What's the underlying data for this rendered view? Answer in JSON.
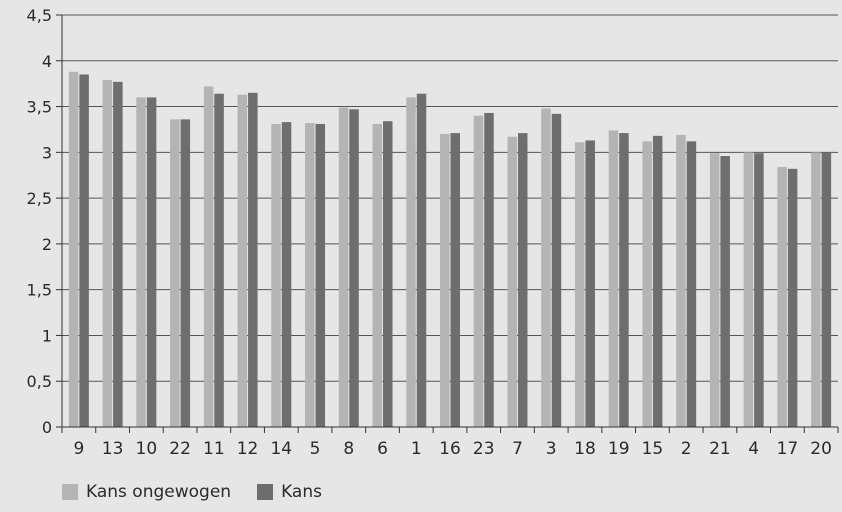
{
  "chart_data": {
    "type": "bar",
    "title": "",
    "xlabel": "",
    "ylabel": "",
    "categories": [
      "9",
      "13",
      "10",
      "22",
      "11",
      "12",
      "14",
      "5",
      "8",
      "6",
      "1",
      "16",
      "23",
      "7",
      "3",
      "18",
      "19",
      "15",
      "2",
      "21",
      "4",
      "17",
      "20"
    ],
    "series": [
      {
        "name": "Kans ongewogen",
        "color": "#b4b4b4",
        "values": [
          3.88,
          3.79,
          3.6,
          3.36,
          3.72,
          3.63,
          3.31,
          3.32,
          3.49,
          3.31,
          3.6,
          3.2,
          3.4,
          3.17,
          3.48,
          3.11,
          3.24,
          3.12,
          3.19,
          2.99,
          3.0,
          2.84,
          3.0
        ]
      },
      {
        "name": "Kans",
        "color": "#6e6e6e",
        "values": [
          3.85,
          3.77,
          3.6,
          3.36,
          3.64,
          3.65,
          3.33,
          3.31,
          3.47,
          3.34,
          3.64,
          3.21,
          3.43,
          3.21,
          3.42,
          3.13,
          3.21,
          3.18,
          3.12,
          2.96,
          2.99,
          2.82,
          3.0
        ]
      }
    ],
    "ylim": [
      0,
      4.5
    ],
    "yticks": [
      "0",
      "0,5",
      "1",
      "1,5",
      "2",
      "2,5",
      "3",
      "3,5",
      "4",
      "4,5"
    ],
    "grid": true,
    "legend_position": "bottom-left"
  }
}
